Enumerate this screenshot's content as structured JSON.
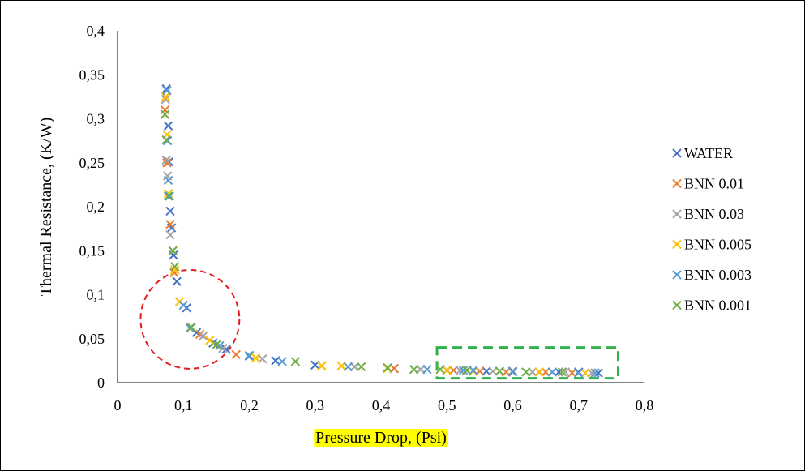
{
  "chart_data": {
    "type": "scatter",
    "xlabel": "Pressure Drop, (Psi)",
    "ylabel": "Thermal Resistance, (K/W)",
    "xlim": [
      0,
      0.8
    ],
    "ylim": [
      0,
      0.4
    ],
    "x_ticks": [
      "0",
      "0,1",
      "0,2",
      "0,3",
      "0,4",
      "0,5",
      "0,6",
      "0,7",
      "0,8"
    ],
    "y_ticks": [
      "0",
      "0,05",
      "0,1",
      "0,15",
      "0,2",
      "0,25",
      "0,3",
      "0,35",
      "0,4"
    ],
    "grid": false,
    "legend_position": "right",
    "marker": "x",
    "xlabel_highlight": "#ffff00",
    "annotations": [
      {
        "shape": "circle",
        "style": "dashed",
        "color": "#e31a1c",
        "center": [
          0.11,
          0.072
        ],
        "radius_x": 0.075
      },
      {
        "shape": "rectangle",
        "style": "dashed",
        "color": "#2fb34a",
        "x_range": [
          0.485,
          0.76
        ],
        "y_range": [
          0.005,
          0.04
        ]
      }
    ],
    "series": [
      {
        "name": "WATER",
        "color": "#4472c4",
        "points": [
          [
            0.074,
            0.334
          ],
          [
            0.077,
            0.292
          ],
          [
            0.078,
            0.251
          ],
          [
            0.08,
            0.195
          ],
          [
            0.082,
            0.176
          ],
          [
            0.085,
            0.145
          ],
          [
            0.09,
            0.115
          ],
          [
            0.105,
            0.085
          ],
          [
            0.12,
            0.057
          ],
          [
            0.145,
            0.045
          ],
          [
            0.165,
            0.038
          ],
          [
            0.2,
            0.03
          ],
          [
            0.24,
            0.025
          ],
          [
            0.3,
            0.02
          ],
          [
            0.36,
            0.018
          ],
          [
            0.42,
            0.016
          ],
          [
            0.46,
            0.015
          ],
          [
            0.5,
            0.014
          ],
          [
            0.53,
            0.014
          ],
          [
            0.56,
            0.013
          ],
          [
            0.6,
            0.013
          ],
          [
            0.64,
            0.012
          ],
          [
            0.67,
            0.012
          ],
          [
            0.7,
            0.012
          ],
          [
            0.73,
            0.011
          ]
        ]
      },
      {
        "name": "BNN 0.01",
        "color": "#ed7d31",
        "points": [
          [
            0.072,
            0.31
          ],
          [
            0.075,
            0.25
          ],
          [
            0.08,
            0.18
          ],
          [
            0.086,
            0.125
          ],
          [
            0.125,
            0.055
          ],
          [
            0.18,
            0.032
          ],
          [
            0.31,
            0.019
          ],
          [
            0.42,
            0.016
          ],
          [
            0.51,
            0.014
          ],
          [
            0.55,
            0.013
          ],
          [
            0.59,
            0.012
          ],
          [
            0.65,
            0.012
          ],
          [
            0.69,
            0.011
          ]
        ]
      },
      {
        "name": "BNN 0.03",
        "color": "#a5a5a5",
        "points": [
          [
            0.073,
            0.322
          ],
          [
            0.074,
            0.253
          ],
          [
            0.076,
            0.235
          ],
          [
            0.08,
            0.168
          ],
          [
            0.13,
            0.053
          ],
          [
            0.16,
            0.039
          ],
          [
            0.22,
            0.027
          ],
          [
            0.36,
            0.018
          ],
          [
            0.46,
            0.015
          ],
          [
            0.52,
            0.014
          ],
          [
            0.57,
            0.013
          ],
          [
            0.63,
            0.012
          ],
          [
            0.68,
            0.012
          ],
          [
            0.72,
            0.011
          ]
        ]
      },
      {
        "name": "BNN 0.005",
        "color": "#ffc000",
        "points": [
          [
            0.073,
            0.325
          ],
          [
            0.075,
            0.282
          ],
          [
            0.077,
            0.215
          ],
          [
            0.087,
            0.128
          ],
          [
            0.094,
            0.092
          ],
          [
            0.14,
            0.048
          ],
          [
            0.21,
            0.028
          ],
          [
            0.31,
            0.019
          ],
          [
            0.34,
            0.019
          ],
          [
            0.41,
            0.016
          ],
          [
            0.5,
            0.014
          ],
          [
            0.54,
            0.013
          ],
          [
            0.6,
            0.012
          ],
          [
            0.64,
            0.012
          ],
          [
            0.71,
            0.011
          ]
        ]
      },
      {
        "name": "BNN 0.003",
        "color": "#5b9bd5",
        "points": [
          [
            0.075,
            0.332
          ],
          [
            0.076,
            0.275
          ],
          [
            0.077,
            0.23
          ],
          [
            0.079,
            0.212
          ],
          [
            0.1,
            0.088
          ],
          [
            0.11,
            0.062
          ],
          [
            0.155,
            0.042
          ],
          [
            0.2,
            0.031
          ],
          [
            0.25,
            0.024
          ],
          [
            0.35,
            0.018
          ],
          [
            0.47,
            0.015
          ],
          [
            0.525,
            0.014
          ],
          [
            0.54,
            0.014
          ],
          [
            0.6,
            0.012
          ],
          [
            0.66,
            0.012
          ],
          [
            0.7,
            0.011
          ],
          [
            0.725,
            0.011
          ]
        ]
      },
      {
        "name": "BNN 0.001",
        "color": "#70ad47",
        "points": [
          [
            0.072,
            0.305
          ],
          [
            0.074,
            0.276
          ],
          [
            0.077,
            0.212
          ],
          [
            0.084,
            0.15
          ],
          [
            0.087,
            0.132
          ],
          [
            0.112,
            0.063
          ],
          [
            0.15,
            0.043
          ],
          [
            0.27,
            0.024
          ],
          [
            0.37,
            0.018
          ],
          [
            0.41,
            0.017
          ],
          [
            0.45,
            0.015
          ],
          [
            0.49,
            0.015
          ],
          [
            0.53,
            0.014
          ],
          [
            0.58,
            0.013
          ],
          [
            0.62,
            0.012
          ],
          [
            0.675,
            0.012
          ]
        ]
      }
    ]
  }
}
